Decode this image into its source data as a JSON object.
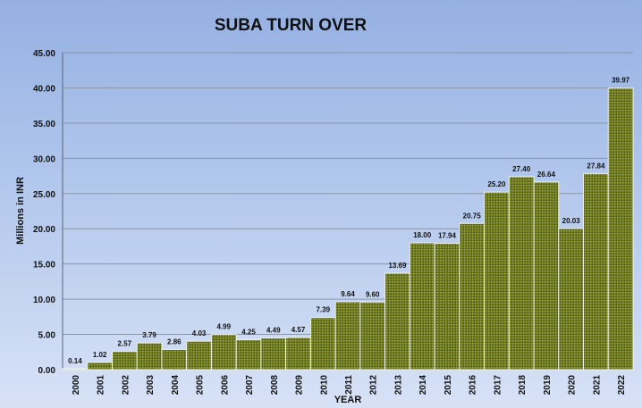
{
  "chart_data": {
    "type": "bar",
    "title": "SUBA TURN OVER",
    "xlabel": "YEAR",
    "ylabel": "Millions in INR",
    "ylim": [
      0,
      45
    ],
    "yticks": [
      "0.00",
      "5.00",
      "10.00",
      "15.00",
      "20.00",
      "25.00",
      "30.00",
      "35.00",
      "40.00",
      "45.00"
    ],
    "categories": [
      "2000",
      "2001",
      "2002",
      "2003",
      "2004",
      "2005",
      "2006",
      "2007",
      "2008",
      "2009",
      "2010",
      "2011",
      "2012",
      "2013",
      "2014",
      "2015",
      "2016",
      "2017",
      "2018",
      "2019",
      "2020",
      "2021",
      "2022"
    ],
    "values": [
      0.14,
      1.02,
      2.57,
      3.79,
      2.86,
      4.03,
      4.99,
      4.25,
      4.49,
      4.57,
      7.39,
      9.64,
      9.6,
      13.69,
      18.0,
      17.94,
      20.75,
      25.2,
      27.4,
      26.64,
      20.03,
      27.84,
      39.97
    ],
    "data_labels": [
      "0.14",
      "1.02",
      "2.57",
      "3.79",
      "2.86",
      "4.03",
      "4.99",
      "4.25",
      "4.49",
      "4.57",
      "7.39",
      "9.64",
      "9.60",
      "13.69",
      "18.00",
      "17.94",
      "20.75",
      "25.20",
      "27.40",
      "26.64",
      "20.03",
      "27.84",
      "39.97"
    ],
    "grid": true,
    "legend": "none",
    "colors": {
      "bar_fill": "#5f6b1f",
      "bar_pattern": "#a5b13c",
      "bar_edge": "#f2f4e8",
      "background_top": "#95b0e2",
      "background_bottom": "#d7e2f6",
      "gridline": "#8a96aa"
    }
  }
}
